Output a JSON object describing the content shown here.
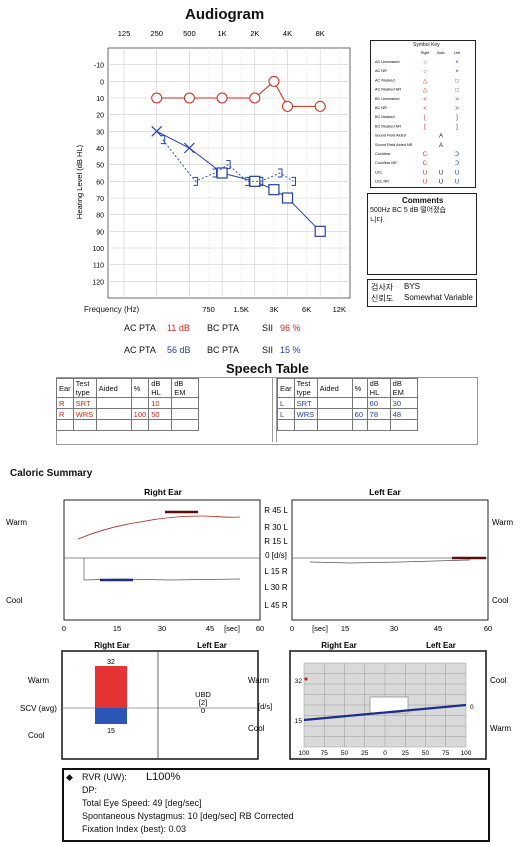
{
  "audiogram": {
    "title": "Audiogram",
    "top_freqs": [
      "125",
      "250",
      "500",
      "1K",
      "2K",
      "4K",
      "8K"
    ],
    "y_ticks": [
      "-10",
      "0",
      "10",
      "20",
      "30",
      "40",
      "50",
      "60",
      "70",
      "80",
      "90",
      "100",
      "110",
      "120"
    ],
    "y_label": "Hearing Level (dB HL)",
    "bottom_label": "Frequency (Hz)",
    "bottom_freqs": [
      "750",
      "1.5K",
      "3K",
      "6K",
      "12K"
    ]
  },
  "chart_data": {
    "type": "line",
    "x_log2_positions": {
      "125": 0,
      "250": 1,
      "500": 2,
      "1K": 3,
      "2K": 4,
      "4K": 5,
      "8K": 6,
      "750": 2.585,
      "1.5K": 3.585,
      "3K": 4.585,
      "6K": 5.585
    },
    "ylim": [
      -20,
      130
    ],
    "series": [
      {
        "name": "AC Unmasked (Right)",
        "color": "#cc2a1a",
        "x": [
          "250",
          "500",
          "1K",
          "2K",
          "3K",
          "4K",
          "8K"
        ],
        "y": [
          10,
          10,
          10,
          10,
          0,
          15,
          15
        ],
        "marker": "circle"
      },
      {
        "name": "AC Masked (Left)",
        "color": "#2340a8",
        "x": [
          "1K",
          "2K",
          "3K",
          "4K",
          "8K"
        ],
        "y": [
          55,
          60,
          65,
          70,
          90
        ],
        "marker": "square"
      },
      {
        "name": "AC Unmasked (Left)",
        "color": "#2340a8",
        "x": [
          "250",
          "500"
        ],
        "y": [
          30,
          40
        ],
        "marker": "x"
      },
      {
        "name": "BC Masked (Left)",
        "color": "#2340a8",
        "x": [
          "250",
          "500",
          "750",
          "1K",
          "1.5K",
          "2K",
          "3K",
          "4K"
        ],
        "y": [
          35,
          60,
          55,
          50,
          60,
          60,
          55,
          60
        ],
        "marker": "bracket"
      }
    ]
  },
  "symbol_key": {
    "title": "Symbol Key",
    "col_heads": [
      "Right",
      "Both",
      "Left"
    ],
    "rows": [
      "AC Unmasked",
      "AC NR",
      "AC Masked",
      "AC Masked NR",
      "BC Unmasked",
      "BC NR",
      "BC Masked",
      "BC Masked NR",
      "Sound Field Aided",
      "Sound Field Aided NR",
      "Cochlear",
      "Cochlear NR",
      "UCL",
      "UCL NR"
    ]
  },
  "comments": {
    "title": "Comments",
    "text": "500Hz BC 5 dB 떨어졌습니다.",
    "examiner_label": "검사자",
    "examiner": "BYS",
    "reliability_label": "신뢰도",
    "reliability": "Somewhat Variable"
  },
  "pta": {
    "row1": {
      "ac_label": "AC PTA",
      "ac_value": "11 dB",
      "bc_label": "BC PTA",
      "bc_value": "",
      "sii_label": "SII",
      "sii_value": "96 %"
    },
    "row2": {
      "ac_label": "AC PTA",
      "ac_value": "56 dB",
      "bc_label": "BC PTA",
      "bc_value": "",
      "sii_label": "SII",
      "sii_value": "15 %"
    }
  },
  "speech_table": {
    "title": "Speech Table",
    "headers": [
      "Ear",
      "Test type",
      "Aided",
      "%",
      "dB HL",
      "dB EM"
    ],
    "right_rows": [
      [
        "R",
        "SRT",
        "",
        "",
        "10",
        ""
      ],
      [
        "R",
        "WRS",
        "",
        "100",
        "50",
        ""
      ]
    ],
    "left_rows": [
      [
        "L",
        "SRT",
        "",
        "",
        "60",
        "30"
      ],
      [
        "L",
        "WRS",
        "",
        "60",
        "78",
        "48"
      ]
    ]
  },
  "caloric": {
    "title": "Caloric Summary",
    "right_ear": "Right Ear",
    "left_ear": "Left Ear",
    "warm": "Warm",
    "cool": "Cool",
    "mid_labels": [
      "R 45 L",
      "R 30 L",
      "R 15 L",
      "0 [d/s]",
      "L 15 R",
      "L 30 R",
      "L 45 R"
    ],
    "x_ticks_right": [
      "0",
      "15",
      "30",
      "45",
      "[sec]",
      "60"
    ],
    "x_ticks_left": [
      "0",
      "[sec]",
      "15",
      "30",
      "45",
      "60"
    ],
    "scv_label": "SCV (avg)",
    "bar_top_value": "32",
    "bar_bottom_value": "15",
    "ubd_label": "UBD",
    "ubd_value": "[2]",
    "ubd_zero": "0",
    "ds_label": "[d/s]",
    "pref_top": "32",
    "pref_left": "15",
    "pref_right": "0",
    "pref_x_ticks": [
      "100",
      "75",
      "50",
      "25",
      "0",
      "25",
      "50",
      "75",
      "100"
    ],
    "rvr_label": "RVR (UW):",
    "rvr_value": "L100%",
    "dp_label": "DP:",
    "eye_speed": "Total Eye Speed: 49 [deg/sec]",
    "nystagmus": "Spontaneous Nystagmus:  10 [deg/sec] RB  Corrected",
    "fixation": "Fixation Index (best): 0.03"
  }
}
